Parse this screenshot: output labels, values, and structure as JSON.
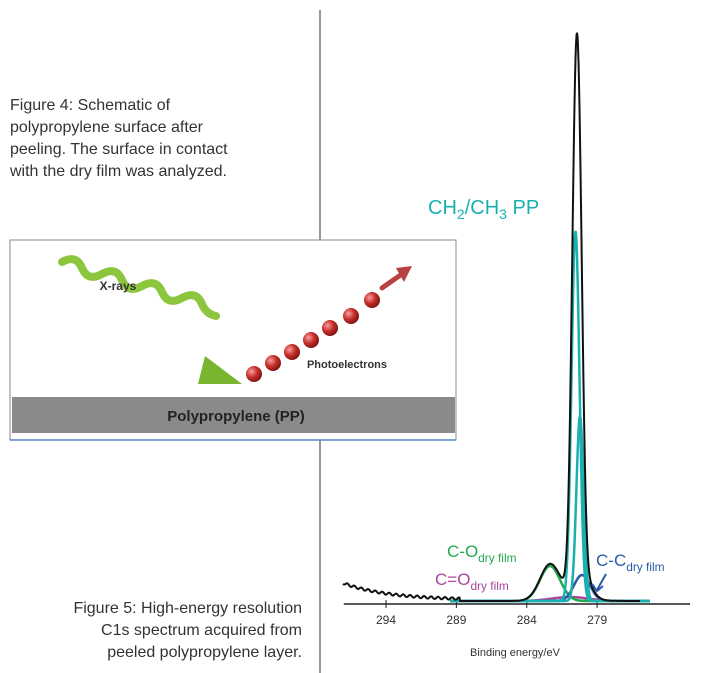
{
  "figure4": {
    "caption_lines": [
      "Figure 4: Schematic of",
      "polypropylene surface after",
      "peeling. The surface in contact",
      "with the dry film was analyzed."
    ],
    "schematic": {
      "xray_label": "X-rays",
      "photoelectron_label": "Photoelectrons",
      "surface_label": "Polypropylene (PP)"
    }
  },
  "figure5": {
    "caption_lines": [
      "Figure 5: High-energy resolution",
      "C1s spectrum acquired from",
      "peeled polypropylene layer."
    ],
    "spectrum": {
      "xlabel": "Binding energy/eV",
      "xlim": [
        297,
        272.4
      ],
      "xticks": [
        294,
        289,
        284,
        279
      ],
      "annotations": [
        {
          "color": "#1ab0b0",
          "parts": [
            {
              "text": "CH"
            },
            {
              "sub": "2"
            },
            {
              "text": "/CH"
            },
            {
              "sub": "3"
            },
            {
              "text": " PP"
            }
          ]
        },
        {
          "color": "#22a84e",
          "parts": [
            {
              "text": "C-O"
            },
            {
              "sub": "dry film"
            }
          ]
        },
        {
          "color": "#a8489c",
          "parts": [
            {
              "text": "C=O"
            },
            {
              "sub": "dry film"
            }
          ]
        },
        {
          "color": "#2a5aa8",
          "parts": [
            {
              "text": "C-C"
            },
            {
              "sub": "dry film"
            }
          ]
        }
      ]
    }
  }
}
